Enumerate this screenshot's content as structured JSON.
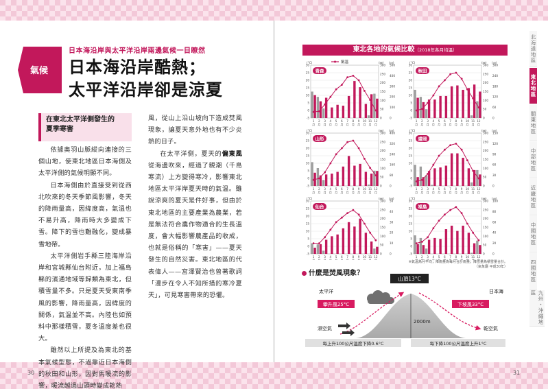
{
  "pages": {
    "left_number": "30",
    "right_number": "31"
  },
  "header": {
    "subtitle": "日本海沿岸與太平洋沿岸兩邊氣候一目瞭然",
    "tag": "氣候",
    "title_line1": "日本海沿岸酷熱；",
    "title_line2": "太平洋沿岸卻是涼夏"
  },
  "section": {
    "heading_line1": "在東北太平洋側發生的",
    "heading_line2": "夏季寒害"
  },
  "body": {
    "col1": [
      "依據奧羽山脈縱向連接的三個山地，使東北地區日本海側及太平洋側的氣候明顯不同。",
      "日本海側由於直接受到從西北吹來的冬天季節風影響，冬天的降雨量高，因緯度高，氣溫也不易升高，降雨時大多變成下雪。降下的雪也難融化，變成暴雪地帶。",
      "太平洋側岩手縣三陸海岸沿岸和宮城縣仙台附近，加上福島縣的濱通地域等歸類為東北，但積雪量不多。只是夏天受東南季風的影響，降雨量高，因緯度的關係，氣溫並不高。內陸也如預料中那樣積雪，夏冬溫度差也很大。",
      "雖然以上所提及為東北的基本氣候型態，不過靠近日本海側的秋田和山形，因對馬暖流的影響，暖流越過山頭時變成乾熱"
    ],
    "col2_cont": "風，從山上沿山坡向下造成焚風現象，讓夏天意外地也有不少炎熱的日子。",
    "col2_p2_pre": "在太平洋側，夏天的",
    "col2_p2_bold": "偏東風",
    "col2_p2_post": "從海邊吹來，經過了親潮（千島寒流）上方變得寒冷，影響東北地區太平洋岸夏天時的氣溫。雖說涼爽的夏天是件好事，但由於東北地區的主要產業為農業，若是無法符合農作物適合的生長溫度，會大幅影響農產品的收成，也就是俗稱的「寒害」——夏天發生的自然災害。東北地區的代表偉人——宮澤賢治也曾著歌詞「漫步在令人不知所措的寒冷夏天」，可見寒害帶來的恐懼。"
  },
  "chart": {
    "title": "東北各地的氣候比較",
    "subtitle": "（2018年各月均溫）",
    "legend": {
      "temp": "氣溫",
      "rain": "降雨量",
      "snow": "降雪量"
    },
    "units": {
      "temp": "(°C)",
      "rain": "(㎜)",
      "snow": "(㎝)",
      "rain_label": "降水量",
      "snow_label": "降雪量"
    },
    "footnote_line1": "※氣溫為月平均；降雨量為每月合計雨量；降雪量為積雪量合計。",
    "footnote_line2": "（氣象廳 平成30年）",
    "colors": {
      "accent": "#c2185b",
      "snow": "#9e9e9e"
    }
  },
  "chart_data": [
    {
      "type": "bar",
      "title": "青森",
      "categories": [
        "1",
        "2",
        "3",
        "4",
        "5",
        "6",
        "7",
        "8",
        "9",
        "10",
        "11",
        "12"
      ],
      "ylim_temp": [
        -5,
        30
      ],
      "ylim_rain": [
        0,
        300
      ],
      "ylim_snow": [
        0,
        500
      ],
      "series": [
        {
          "name": "氣溫",
          "type": "line",
          "values": [
            -1,
            -0.5,
            4,
            9,
            14,
            17,
            22,
            23,
            20,
            13,
            7,
            0
          ]
        },
        {
          "name": "降雨量",
          "values": [
            130,
            95,
            115,
            60,
            75,
            70,
            125,
            210,
            175,
            80,
            135,
            110
          ]
        },
        {
          "name": "降雪量",
          "values": [
            250,
            200,
            90,
            0,
            0,
            0,
            0,
            0,
            0,
            0,
            25,
            230
          ]
        }
      ]
    },
    {
      "type": "bar",
      "title": "秋田",
      "categories": [
        "1",
        "2",
        "3",
        "4",
        "5",
        "6",
        "7",
        "8",
        "9",
        "10",
        "11",
        "12"
      ],
      "ylim_temp": [
        -5,
        30
      ],
      "ylim_rain": [
        0,
        300
      ],
      "ylim_snow": [
        0,
        300
      ],
      "series": [
        {
          "name": "氣溫",
          "type": "line",
          "values": [
            0,
            1,
            5,
            10,
            16,
            20,
            24,
            25,
            21,
            14,
            8,
            2
          ]
        },
        {
          "name": "降雨量",
          "values": [
            115,
            90,
            105,
            105,
            125,
            125,
            180,
            185,
            160,
            170,
            190,
            150
          ]
        },
        {
          "name": "降雪量",
          "values": [
            160,
            120,
            50,
            0,
            0,
            0,
            0,
            0,
            0,
            0,
            15,
            95
          ]
        }
      ]
    },
    {
      "type": "bar",
      "title": "山形",
      "categories": [
        "1",
        "2",
        "3",
        "4",
        "5",
        "6",
        "7",
        "8",
        "9",
        "10",
        "11",
        "12"
      ],
      "ylim_temp": [
        -5,
        30
      ],
      "ylim_rain": [
        0,
        300
      ],
      "ylim_snow": [
        0,
        400
      ],
      "series": [
        {
          "name": "氣溫",
          "type": "line",
          "values": [
            -1,
            0,
            4,
            10,
            16,
            20,
            24,
            25,
            20,
            13,
            7,
            2
          ]
        },
        {
          "name": "降雨量",
          "values": [
            75,
            60,
            65,
            70,
            80,
            110,
            170,
            115,
            125,
            80,
            70,
            85
          ]
        },
        {
          "name": "降雪量",
          "values": [
            180,
            135,
            45,
            0,
            0,
            0,
            0,
            0,
            0,
            0,
            10,
            115
          ]
        }
      ]
    },
    {
      "type": "bar",
      "title": "盛岡",
      "categories": [
        "1",
        "2",
        "3",
        "4",
        "5",
        "6",
        "7",
        "8",
        "9",
        "10",
        "11",
        "12"
      ],
      "ylim_temp": [
        -5,
        30
      ],
      "ylim_rain": [
        0,
        300
      ],
      "ylim_snow": [
        0,
        150
      ],
      "series": [
        {
          "name": "氣溫",
          "type": "line",
          "values": [
            -2,
            -1,
            3,
            9,
            15,
            19,
            22,
            23,
            19,
            12,
            5,
            0
          ]
        },
        {
          "name": "降雨量",
          "values": [
            50,
            50,
            85,
            100,
            105,
            115,
            185,
            185,
            160,
            100,
            90,
            65
          ]
        },
        {
          "name": "降雪量",
          "values": [
            60,
            55,
            30,
            3,
            0,
            0,
            0,
            0,
            0,
            0,
            10,
            45
          ]
        }
      ]
    },
    {
      "type": "bar",
      "title": "仙台",
      "categories": [
        "1",
        "2",
        "3",
        "4",
        "5",
        "6",
        "7",
        "8",
        "9",
        "10",
        "11",
        "12"
      ],
      "ylim_temp": [
        -5,
        30
      ],
      "ylim_rain": [
        0,
        300
      ],
      "ylim_snow": [
        0,
        50
      ],
      "series": [
        {
          "name": "氣溫",
          "type": "line",
          "values": [
            2,
            2,
            6,
            11,
            16,
            19,
            22,
            24,
            21,
            15,
            9,
            4
          ]
        },
        {
          "name": "降雨量",
          "values": [
            35,
            55,
            80,
            100,
            110,
            145,
            180,
            155,
            200,
            120,
            70,
            40
          ]
        },
        {
          "name": "降雪量",
          "values": [
            10,
            9,
            3,
            0,
            0,
            0,
            0,
            0,
            0,
            0,
            0,
            5
          ]
        }
      ]
    },
    {
      "type": "bar",
      "title": "福島",
      "categories": [
        "1",
        "2",
        "3",
        "4",
        "5",
        "6",
        "7",
        "8",
        "9",
        "10",
        "11",
        "12"
      ],
      "ylim_temp": [
        -5,
        30
      ],
      "ylim_rain": [
        0,
        300
      ],
      "ylim_snow": [
        0,
        100
      ],
      "series": [
        {
          "name": "氣溫",
          "type": "line",
          "values": [
            2,
            3,
            6,
            12,
            17,
            21,
            24,
            26,
            22,
            15,
            9,
            4
          ]
        },
        {
          "name": "降雨量",
          "values": [
            55,
            50,
            80,
            90,
            85,
            140,
            160,
            130,
            160,
            120,
            60,
            50
          ]
        },
        {
          "name": "降雪量",
          "values": [
            35,
            30,
            10,
            0,
            0,
            0,
            0,
            0,
            0,
            0,
            2,
            25
          ]
        }
      ]
    }
  ],
  "foehn": {
    "title": "什麼是焚風現象？",
    "peak": "山頂13°C",
    "pacific": "太平洋",
    "japan_sea": "日本海",
    "ascend": "攀升風25°C",
    "descend": "下坡風33°C",
    "height": "2000m",
    "wet_air": "濕空氣",
    "dry_air": "乾空氣",
    "rule_up": "每上升100公尺溫度下降0.6°C",
    "rule_down": "每下降100公尺溫度上升1°C"
  },
  "side_tabs": [
    {
      "label": "北海道地區",
      "active": false
    },
    {
      "label": "東北地區",
      "active": true
    },
    {
      "label": "關東地區",
      "active": false
    },
    {
      "label": "中部地區",
      "active": false
    },
    {
      "label": "近畿地區",
      "active": false
    },
    {
      "label": "中國地區",
      "active": false
    },
    {
      "label": "四國地區",
      "active": false
    },
    {
      "label": "九州・沖繩地區",
      "active": false
    }
  ]
}
